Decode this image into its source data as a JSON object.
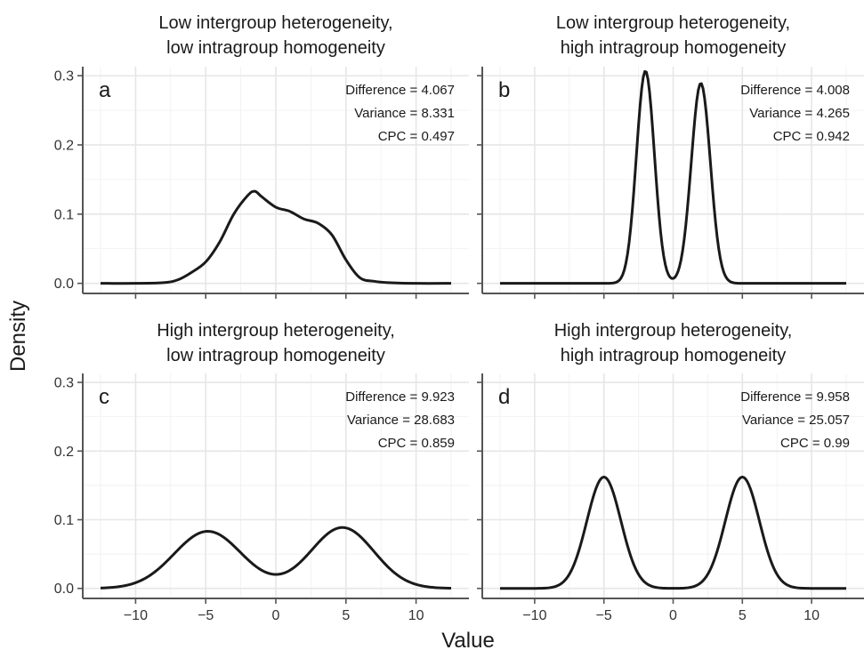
{
  "figure": {
    "xlabel": "Value",
    "ylabel": "Density"
  },
  "chart_data": [
    {
      "type": "line",
      "panel": "a",
      "title_lines": [
        "Low intergroup heterogeneity,",
        "low intragroup homogeneity"
      ],
      "annotations": [
        "Difference = 4.067",
        "Variance = 8.331",
        "CPC = 0.497"
      ],
      "xlim": [
        -12.5,
        12.5
      ],
      "ylim": [
        0,
        0.31
      ],
      "x_ticks": [
        -10,
        -5,
        0,
        5,
        10
      ],
      "x_tick_labels": [
        "",
        "",
        "",
        "",
        ""
      ],
      "y_ticks": [
        0.0,
        0.1,
        0.2,
        0.3
      ],
      "y_tick_labels": [
        "0.0",
        "0.1",
        "0.2",
        "0.3"
      ],
      "grid": true,
      "series": [
        {
          "x": [
            -12.5,
            -10,
            -8,
            -7,
            -6,
            -5,
            -4,
            -3,
            -2,
            -1.5,
            -1,
            0,
            1,
            2,
            3,
            4,
            5,
            6,
            7,
            8,
            10,
            12.5
          ],
          "values": [
            0.0,
            0.0,
            0.001,
            0.005,
            0.016,
            0.031,
            0.06,
            0.1,
            0.127,
            0.133,
            0.125,
            0.11,
            0.104,
            0.093,
            0.087,
            0.07,
            0.034,
            0.008,
            0.003,
            0.001,
            0.0,
            0.0
          ]
        }
      ]
    },
    {
      "type": "line",
      "panel": "b",
      "title_lines": [
        "Low intergroup heterogeneity,",
        "high intragroup homogeneity"
      ],
      "annotations": [
        "Difference = 4.008",
        "Variance = 4.265",
        "CPC = 0.942"
      ],
      "xlim": [
        -12.5,
        12.5
      ],
      "ylim": [
        0,
        0.31
      ],
      "x_ticks": [
        -10,
        -5,
        0,
        5,
        10
      ],
      "x_tick_labels": [
        "",
        "",
        "",
        "",
        ""
      ],
      "y_ticks": [
        0.0,
        0.1,
        0.2,
        0.3
      ],
      "y_tick_labels": [
        "",
        "",
        "",
        ""
      ],
      "grid": true,
      "series": [
        {
          "mixture": [
            {
              "weight": 0.5,
              "mean": -2.0,
              "sd": 0.65
            },
            {
              "weight": 0.5,
              "mean": 2.0,
              "sd": 0.69
            }
          ]
        }
      ]
    },
    {
      "type": "line",
      "panel": "c",
      "title_lines": [
        "High intergroup heterogeneity,",
        "low intragroup homogeneity"
      ],
      "annotations": [
        "Difference = 9.923",
        "Variance = 28.683",
        "CPC = 0.859"
      ],
      "xlim": [
        -12.5,
        12.5
      ],
      "ylim": [
        0,
        0.31
      ],
      "x_ticks": [
        -10,
        -5,
        0,
        5,
        10
      ],
      "x_tick_labels": [
        "−10",
        "−5",
        "0",
        "5",
        "10"
      ],
      "y_ticks": [
        0.0,
        0.1,
        0.2,
        0.3
      ],
      "y_tick_labels": [
        "0.0",
        "0.1",
        "0.2",
        "0.3"
      ],
      "grid": true,
      "series": [
        {
          "mixture": [
            {
              "weight": 0.5,
              "mean": -4.85,
              "sd": 2.4
            },
            {
              "weight": 0.5,
              "mean": 4.75,
              "sd": 2.25
            }
          ]
        }
      ]
    },
    {
      "type": "line",
      "panel": "d",
      "title_lines": [
        "High intergroup heterogeneity,",
        "high intragroup homogeneity"
      ],
      "annotations": [
        "Difference = 9.958",
        "Variance = 25.057",
        "CPC = 0.99"
      ],
      "xlim": [
        -12.5,
        12.5
      ],
      "ylim": [
        0,
        0.31
      ],
      "x_ticks": [
        -10,
        -5,
        0,
        5,
        10
      ],
      "x_tick_labels": [
        "−10",
        "−5",
        "0",
        "5",
        "10"
      ],
      "y_ticks": [
        0.0,
        0.1,
        0.2,
        0.3
      ],
      "y_tick_labels": [
        "",
        "",
        "",
        ""
      ],
      "grid": true,
      "series": [
        {
          "mixture": [
            {
              "weight": 0.5,
              "mean": -5.0,
              "sd": 1.23
            },
            {
              "weight": 0.5,
              "mean": 5.0,
              "sd": 1.23
            }
          ]
        }
      ]
    }
  ]
}
